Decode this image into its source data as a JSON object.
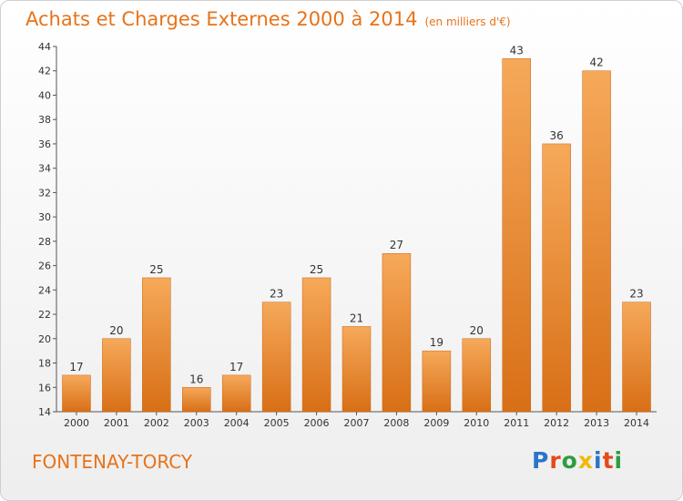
{
  "header": {
    "title": "Achats et Charges Externes 2000 à 2014",
    "subtitle": "(en milliers d'€)"
  },
  "footer": {
    "location": "FONTENAY-TORCY",
    "logo_text": "Proxiti"
  },
  "colors": {
    "bar_light": "#f6a95a",
    "bar_dark": "#d86f16",
    "accent": "#e7731a",
    "logo_letters": [
      "#2a74c9",
      "#e64a19",
      "#2e9d3f",
      "#f1b80a",
      "#2a74c9",
      "#e64a19",
      "#2e9d3f"
    ]
  },
  "chart_data": {
    "type": "bar",
    "categories": [
      "2000",
      "2001",
      "2002",
      "2003",
      "2004",
      "2005",
      "2006",
      "2007",
      "2008",
      "2009",
      "2010",
      "2011",
      "2012",
      "2013",
      "2014"
    ],
    "values": [
      17,
      20,
      25,
      16,
      17,
      23,
      25,
      21,
      27,
      19,
      20,
      43,
      36,
      42,
      23
    ],
    "data_labels": [
      "17",
      "20",
      "25",
      "16",
      "17",
      "23",
      "25",
      "21",
      "27",
      "19",
      "20",
      "43",
      "36",
      "42",
      "23"
    ],
    "yticks": [
      "14",
      "16",
      "18",
      "20",
      "22",
      "24",
      "26",
      "28",
      "30",
      "32",
      "34",
      "36",
      "38",
      "40",
      "42",
      "44"
    ],
    "ylim": [
      14,
      44
    ],
    "title": "Achats et Charges Externes 2000 à 2014",
    "grid": false,
    "legend": "none"
  }
}
